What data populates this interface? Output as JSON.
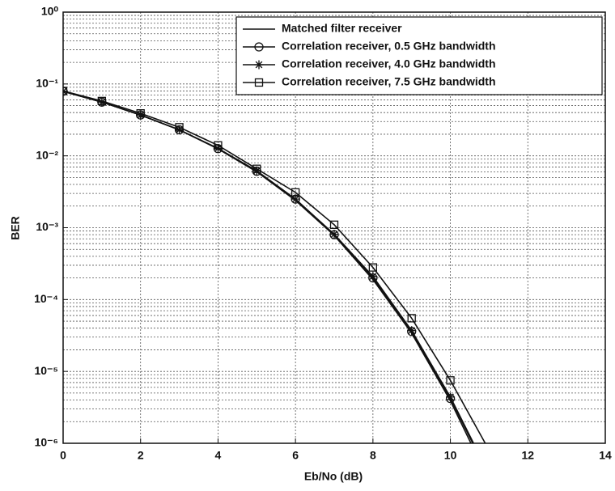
{
  "chart_data": {
    "type": "line",
    "xlabel": "Eb/No (dB)",
    "ylabel": "BER",
    "x": [
      0,
      1,
      2,
      3,
      4,
      5,
      6,
      7,
      8,
      9,
      10,
      11
    ],
    "series": [
      {
        "name": "Matched filter receiver",
        "color": "#111111",
        "marker": "none",
        "values": [
          0.079,
          0.056,
          0.037,
          0.023,
          0.0125,
          0.006,
          0.0024,
          0.00078,
          0.00019,
          3.4e-05,
          3.9e-06,
          3e-07
        ]
      },
      {
        "name": "Correlation receiver, 0.5 GHz bandwidth",
        "color": "#111111",
        "marker": "circle",
        "values": [
          0.079,
          0.056,
          0.037,
          0.023,
          0.0126,
          0.0061,
          0.0025,
          0.0008,
          0.0002,
          3.6e-05,
          4.2e-06,
          3.5e-07
        ]
      },
      {
        "name": "Correlation receiver, 4.0 GHz bandwidth",
        "color": "#111111",
        "marker": "star",
        "values": [
          0.079,
          0.056,
          0.037,
          0.023,
          0.0127,
          0.0062,
          0.0025,
          0.00081,
          0.00021,
          3.7e-05,
          4.4e-06,
          3.7e-07
        ]
      },
      {
        "name": "Correlation receiver, 7.5 GHz bandwidth",
        "color": "#111111",
        "marker": "square",
        "values": [
          0.08,
          0.058,
          0.039,
          0.025,
          0.014,
          0.0066,
          0.0031,
          0.0011,
          0.00028,
          5.5e-05,
          7.5e-06,
          8e-07
        ]
      }
    ],
    "xlim": [
      0,
      14
    ],
    "xticks": [
      0,
      2,
      4,
      6,
      8,
      10,
      12,
      14
    ],
    "ylim": [
      1e-06,
      1
    ],
    "log_y": true,
    "yticks": [
      {
        "value": 1e-06,
        "label": "10⁻⁶"
      },
      {
        "value": 1e-05,
        "label": "10⁻⁵"
      },
      {
        "value": 0.0001,
        "label": "10⁻⁴"
      },
      {
        "value": 0.001,
        "label": "10⁻³"
      },
      {
        "value": 0.01,
        "label": "10⁻²"
      },
      {
        "value": 0.1,
        "label": "10⁻¹"
      },
      {
        "value": 1,
        "label": "10⁰"
      }
    ],
    "grid": true,
    "legend": "upper right"
  }
}
